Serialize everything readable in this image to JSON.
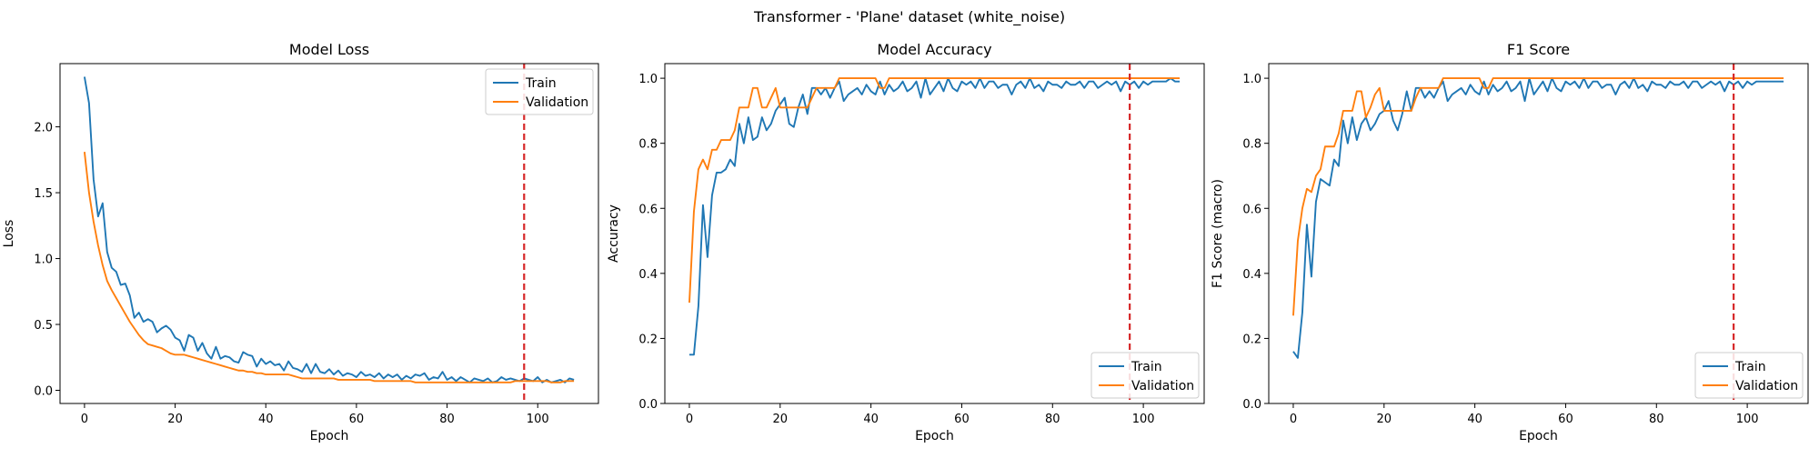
{
  "suptitle": "Transformer - 'Plane' dataset (white_noise)",
  "colors": {
    "train": "#1f77b4",
    "validation": "#ff7f0e",
    "marker": "#d62728",
    "axis": "#000000"
  },
  "chart_data": [
    {
      "type": "line",
      "title": "Model Loss",
      "xlabel": "Epoch",
      "ylabel": "Loss",
      "xlim": [
        -5.4,
        113.4
      ],
      "ylim": [
        -0.1,
        2.48
      ],
      "xticks": [
        0,
        20,
        40,
        60,
        80,
        100
      ],
      "yticks": [
        0.0,
        0.5,
        1.0,
        1.5,
        2.0
      ],
      "ytick_labels": [
        "0.0",
        "0.5",
        "1.0",
        "1.5",
        "2.0"
      ],
      "vline": 97,
      "legend": {
        "position": "top-right",
        "entries": [
          "Train",
          "Validation"
        ]
      },
      "series": [
        {
          "name": "Train",
          "color": "#1f77b4",
          "x_end": 108,
          "values": [
            2.38,
            2.18,
            1.6,
            1.32,
            1.42,
            1.05,
            0.93,
            0.9,
            0.8,
            0.81,
            0.72,
            0.55,
            0.59,
            0.52,
            0.54,
            0.52,
            0.44,
            0.47,
            0.49,
            0.46,
            0.4,
            0.38,
            0.3,
            0.42,
            0.4,
            0.3,
            0.36,
            0.28,
            0.24,
            0.33,
            0.24,
            0.26,
            0.25,
            0.22,
            0.21,
            0.29,
            0.27,
            0.26,
            0.18,
            0.24,
            0.2,
            0.22,
            0.19,
            0.2,
            0.15,
            0.22,
            0.17,
            0.16,
            0.14,
            0.2,
            0.13,
            0.2,
            0.14,
            0.13,
            0.16,
            0.12,
            0.15,
            0.11,
            0.13,
            0.12,
            0.1,
            0.14,
            0.11,
            0.12,
            0.1,
            0.13,
            0.09,
            0.12,
            0.1,
            0.12,
            0.08,
            0.11,
            0.09,
            0.12,
            0.11,
            0.13,
            0.08,
            0.1,
            0.09,
            0.14,
            0.08,
            0.1,
            0.07,
            0.1,
            0.08,
            0.06,
            0.09,
            0.08,
            0.07,
            0.09,
            0.06,
            0.07,
            0.1,
            0.08,
            0.09,
            0.08,
            0.07,
            0.09,
            0.08,
            0.07,
            0.1,
            0.06,
            0.08,
            0.06,
            0.07,
            0.08,
            0.06,
            0.09,
            0.08
          ]
        },
        {
          "name": "Validation",
          "color": "#ff7f0e",
          "x_end": 108,
          "values": [
            1.81,
            1.5,
            1.28,
            1.1,
            0.95,
            0.83,
            0.76,
            0.7,
            0.64,
            0.58,
            0.52,
            0.47,
            0.42,
            0.38,
            0.35,
            0.34,
            0.33,
            0.32,
            0.3,
            0.28,
            0.27,
            0.27,
            0.27,
            0.26,
            0.25,
            0.24,
            0.23,
            0.22,
            0.21,
            0.2,
            0.19,
            0.18,
            0.17,
            0.16,
            0.15,
            0.15,
            0.14,
            0.14,
            0.13,
            0.13,
            0.12,
            0.12,
            0.12,
            0.12,
            0.12,
            0.12,
            0.11,
            0.1,
            0.09,
            0.09,
            0.09,
            0.09,
            0.09,
            0.09,
            0.09,
            0.09,
            0.08,
            0.08,
            0.08,
            0.08,
            0.08,
            0.08,
            0.08,
            0.08,
            0.07,
            0.07,
            0.07,
            0.07,
            0.07,
            0.07,
            0.07,
            0.07,
            0.07,
            0.06,
            0.06,
            0.06,
            0.06,
            0.06,
            0.06,
            0.06,
            0.06,
            0.06,
            0.06,
            0.06,
            0.06,
            0.06,
            0.06,
            0.06,
            0.06,
            0.06,
            0.06,
            0.06,
            0.06,
            0.06,
            0.06,
            0.07,
            0.07,
            0.07,
            0.07,
            0.07,
            0.07,
            0.07,
            0.07,
            0.06,
            0.06,
            0.06,
            0.07,
            0.07,
            0.07
          ]
        }
      ]
    },
    {
      "type": "line",
      "title": "Model Accuracy",
      "xlabel": "Epoch",
      "ylabel": "Accuracy",
      "xlim": [
        -5.4,
        113.4
      ],
      "ylim": [
        0.0,
        1.045
      ],
      "xticks": [
        0,
        20,
        40,
        60,
        80,
        100
      ],
      "yticks": [
        0.0,
        0.2,
        0.4,
        0.6,
        0.8,
        1.0
      ],
      "ytick_labels": [
        "0.0",
        "0.2",
        "0.4",
        "0.6",
        "0.8",
        "1.0"
      ],
      "vline": 97,
      "legend": {
        "position": "bottom-right",
        "entries": [
          "Train",
          "Validation"
        ]
      },
      "series": [
        {
          "name": "Train",
          "color": "#1f77b4",
          "x_end": 108,
          "values": [
            0.15,
            0.15,
            0.3,
            0.61,
            0.45,
            0.64,
            0.71,
            0.71,
            0.72,
            0.75,
            0.73,
            0.86,
            0.8,
            0.88,
            0.81,
            0.82,
            0.88,
            0.84,
            0.86,
            0.9,
            0.92,
            0.94,
            0.86,
            0.85,
            0.91,
            0.95,
            0.89,
            0.97,
            0.97,
            0.95,
            0.97,
            0.94,
            0.97,
            0.99,
            0.93,
            0.95,
            0.96,
            0.97,
            0.95,
            0.98,
            0.96,
            0.95,
            0.99,
            0.95,
            0.98,
            0.96,
            0.97,
            0.99,
            0.96,
            0.97,
            0.99,
            0.94,
            1.0,
            0.95,
            0.97,
            0.99,
            0.96,
            1.0,
            0.97,
            0.96,
            0.99,
            0.98,
            0.99,
            0.97,
            1.0,
            0.97,
            0.99,
            0.99,
            0.97,
            0.98,
            0.98,
            0.95,
            0.98,
            0.99,
            0.97,
            1.0,
            0.97,
            0.98,
            0.96,
            0.99,
            0.98,
            0.98,
            0.97,
            0.99,
            0.98,
            0.98,
            0.99,
            0.97,
            0.99,
            0.99,
            0.97,
            0.98,
            0.99,
            0.98,
            0.99,
            0.96,
            0.99,
            0.98,
            0.99,
            0.97,
            0.99,
            0.98,
            0.99,
            0.99,
            0.99,
            0.99,
            1.0,
            0.99,
            0.99
          ]
        },
        {
          "name": "Validation",
          "color": "#ff7f0e",
          "x_end": 108,
          "values": [
            0.31,
            0.59,
            0.72,
            0.75,
            0.72,
            0.78,
            0.78,
            0.81,
            0.81,
            0.81,
            0.84,
            0.91,
            0.91,
            0.91,
            0.97,
            0.97,
            0.91,
            0.91,
            0.94,
            0.97,
            0.91,
            0.91,
            0.91,
            0.91,
            0.91,
            0.91,
            0.91,
            0.94,
            0.97,
            0.97,
            0.97,
            0.97,
            0.97,
            1.0,
            1.0,
            1.0,
            1.0,
            1.0,
            1.0,
            1.0,
            1.0,
            1.0,
            0.97,
            0.97,
            1.0,
            1.0,
            1.0,
            1.0,
            1.0,
            1.0,
            1.0,
            1.0,
            1.0,
            1.0,
            1.0,
            1.0,
            1.0,
            1.0,
            1.0,
            1.0,
            1.0,
            1.0,
            1.0,
            1.0,
            1.0,
            1.0,
            1.0,
            1.0,
            1.0,
            1.0,
            1.0,
            1.0,
            1.0,
            1.0,
            1.0,
            1.0,
            1.0,
            1.0,
            1.0,
            1.0,
            1.0,
            1.0,
            1.0,
            1.0,
            1.0,
            1.0,
            1.0,
            1.0,
            1.0,
            1.0,
            1.0,
            1.0,
            1.0,
            1.0,
            1.0,
            1.0,
            1.0,
            1.0,
            1.0,
            1.0,
            1.0,
            1.0,
            1.0,
            1.0,
            1.0,
            1.0,
            1.0,
            1.0,
            1.0
          ]
        }
      ]
    },
    {
      "type": "line",
      "title": "F1 Score",
      "xlabel": "Epoch",
      "ylabel": "F1 Score (macro)",
      "xlim": [
        -5.4,
        113.4
      ],
      "ylim": [
        0.0,
        1.045
      ],
      "xticks": [
        0,
        20,
        40,
        60,
        80,
        100
      ],
      "yticks": [
        0.0,
        0.2,
        0.4,
        0.6,
        0.8,
        1.0
      ],
      "ytick_labels": [
        "0.0",
        "0.2",
        "0.4",
        "0.6",
        "0.8",
        "1.0"
      ],
      "vline": 97,
      "legend": {
        "position": "bottom-right",
        "entries": [
          "Train",
          "Validation"
        ]
      },
      "series": [
        {
          "name": "Train",
          "color": "#1f77b4",
          "x_end": 108,
          "values": [
            0.16,
            0.14,
            0.28,
            0.55,
            0.39,
            0.62,
            0.69,
            0.68,
            0.67,
            0.75,
            0.73,
            0.87,
            0.8,
            0.88,
            0.81,
            0.86,
            0.88,
            0.84,
            0.86,
            0.89,
            0.9,
            0.93,
            0.87,
            0.84,
            0.89,
            0.96,
            0.9,
            0.97,
            0.97,
            0.94,
            0.96,
            0.94,
            0.97,
            0.99,
            0.93,
            0.95,
            0.96,
            0.97,
            0.95,
            0.98,
            0.96,
            0.95,
            0.99,
            0.95,
            0.98,
            0.96,
            0.97,
            0.99,
            0.96,
            0.97,
            0.99,
            0.93,
            1.0,
            0.95,
            0.97,
            0.99,
            0.96,
            1.0,
            0.97,
            0.96,
            0.99,
            0.98,
            0.99,
            0.97,
            1.0,
            0.97,
            0.99,
            0.99,
            0.97,
            0.98,
            0.98,
            0.95,
            0.98,
            0.99,
            0.97,
            1.0,
            0.97,
            0.98,
            0.96,
            0.99,
            0.98,
            0.98,
            0.97,
            0.99,
            0.98,
            0.98,
            0.99,
            0.97,
            0.99,
            0.99,
            0.97,
            0.98,
            0.99,
            0.98,
            0.99,
            0.96,
            0.99,
            0.98,
            0.99,
            0.97,
            0.99,
            0.98,
            0.99,
            0.99,
            0.99,
            0.99,
            0.99,
            0.99,
            0.99
          ]
        },
        {
          "name": "Validation",
          "color": "#ff7f0e",
          "x_end": 108,
          "values": [
            0.27,
            0.5,
            0.6,
            0.66,
            0.65,
            0.7,
            0.72,
            0.79,
            0.79,
            0.79,
            0.83,
            0.9,
            0.9,
            0.9,
            0.96,
            0.96,
            0.88,
            0.91,
            0.95,
            0.97,
            0.9,
            0.9,
            0.9,
            0.9,
            0.9,
            0.9,
            0.9,
            0.94,
            0.97,
            0.97,
            0.97,
            0.97,
            0.97,
            1.0,
            1.0,
            1.0,
            1.0,
            1.0,
            1.0,
            1.0,
            1.0,
            1.0,
            0.97,
            0.97,
            1.0,
            1.0,
            1.0,
            1.0,
            1.0,
            1.0,
            1.0,
            1.0,
            1.0,
            1.0,
            1.0,
            1.0,
            1.0,
            1.0,
            1.0,
            1.0,
            1.0,
            1.0,
            1.0,
            1.0,
            1.0,
            1.0,
            1.0,
            1.0,
            1.0,
            1.0,
            1.0,
            1.0,
            1.0,
            1.0,
            1.0,
            1.0,
            1.0,
            1.0,
            1.0,
            1.0,
            1.0,
            1.0,
            1.0,
            1.0,
            1.0,
            1.0,
            1.0,
            1.0,
            1.0,
            1.0,
            1.0,
            1.0,
            1.0,
            1.0,
            1.0,
            1.0,
            1.0,
            1.0,
            1.0,
            1.0,
            1.0,
            1.0,
            1.0,
            1.0,
            1.0,
            1.0,
            1.0,
            1.0,
            1.0
          ]
        }
      ]
    }
  ]
}
